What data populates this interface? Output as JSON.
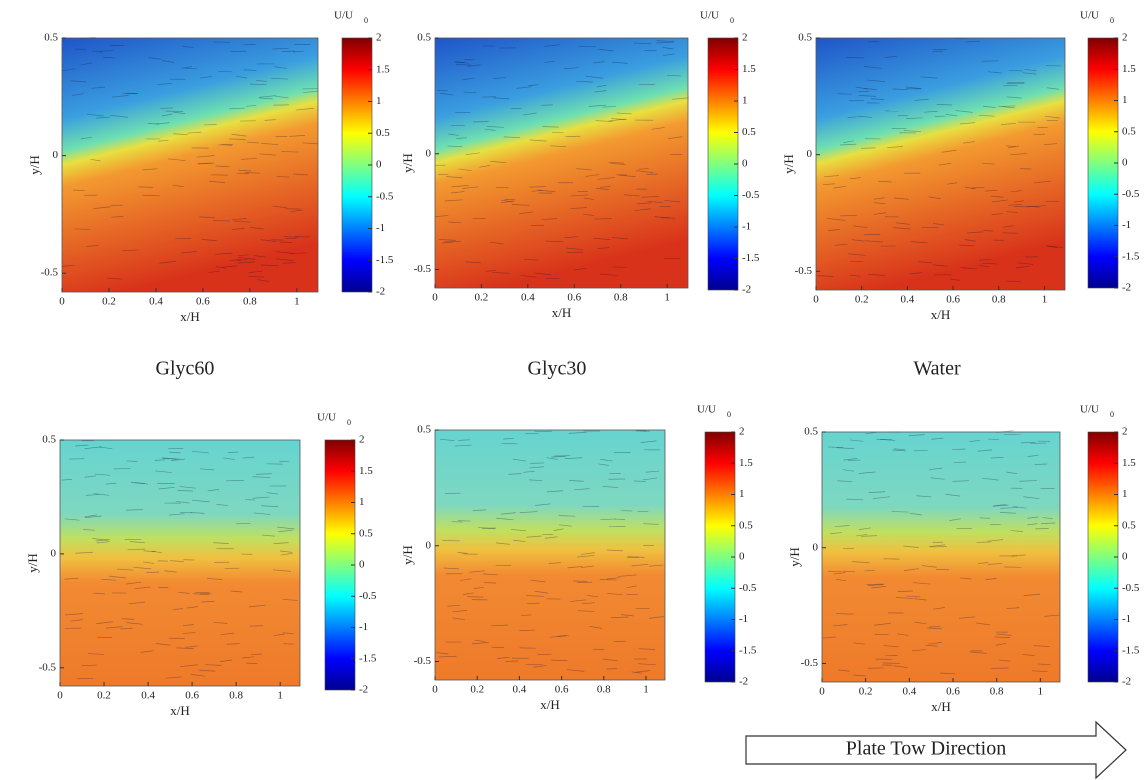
{
  "panels": [
    {
      "xlabel": "x/H",
      "ylabel": "y/H",
      "xlim": [
        0,
        1.09
      ],
      "ylim": [
        -0.58,
        0.5
      ],
      "xticks": [
        0,
        0.2,
        0.4,
        0.6,
        0.8,
        1
      ],
      "yticks": [
        -0.5,
        0,
        0.5
      ],
      "colorbar": {
        "label": "U/U",
        "label_sub": "0",
        "lim": [
          -2,
          2
        ],
        "ticks": [
          2,
          1.5,
          1,
          0.5,
          0,
          -0.5,
          -1,
          -1.5,
          -2
        ]
      }
    },
    {
      "xlabel": "x/H",
      "ylabel": "y/H",
      "xlim": [
        0,
        1.09
      ],
      "ylim": [
        -0.58,
        0.5
      ],
      "xticks": [
        0,
        0.2,
        0.4,
        0.6,
        0.8,
        1
      ],
      "yticks": [
        -0.5,
        0,
        0.5
      ],
      "colorbar": {
        "label": "U/U",
        "label_sub": "0",
        "lim": [
          -2,
          2
        ],
        "ticks": [
          2,
          1.5,
          1,
          0.5,
          0,
          -0.5,
          -1,
          -1.5,
          -2
        ]
      }
    },
    {
      "xlabel": "x/H",
      "ylabel": "y/H",
      "xlim": [
        0,
        1.09
      ],
      "ylim": [
        -0.58,
        0.5
      ],
      "xticks": [
        0,
        0.2,
        0.4,
        0.6,
        0.8,
        1
      ],
      "yticks": [
        -0.5,
        0,
        0.5
      ],
      "colorbar": {
        "label": "U/U",
        "label_sub": "0",
        "lim": [
          -2,
          2
        ],
        "ticks": [
          2,
          1.5,
          1,
          0.5,
          0,
          -0.5,
          -1,
          -1.5,
          -2
        ]
      }
    },
    {
      "xlabel": "x/H",
      "ylabel": "y/H",
      "xlim": [
        0,
        1.09
      ],
      "ylim": [
        -0.58,
        0.5
      ],
      "xticks": [
        0,
        0.2,
        0.4,
        0.6,
        0.8,
        1
      ],
      "yticks": [
        -0.5,
        0,
        0.5
      ],
      "colorbar": {
        "label": "U/U",
        "label_sub": "0",
        "lim": [
          -2,
          2
        ],
        "ticks": [
          2,
          1.5,
          1,
          0.5,
          0,
          -0.5,
          -1,
          -1.5,
          -2
        ]
      }
    },
    {
      "xlabel": "x/H",
      "ylabel": "y/H",
      "xlim": [
        0,
        1.09
      ],
      "ylim": [
        -0.58,
        0.5
      ],
      "xticks": [
        0,
        0.2,
        0.4,
        0.6,
        0.8,
        1
      ],
      "yticks": [
        -0.5,
        0,
        0.5
      ],
      "colorbar": {
        "label": "U/U",
        "label_sub": "0",
        "lim": [
          -2,
          2
        ],
        "ticks": [
          2,
          1.5,
          1,
          0.5,
          0,
          -0.5,
          -1,
          -1.5,
          -2
        ]
      }
    },
    {
      "xlabel": "x/H",
      "ylabel": "y/H",
      "xlim": [
        0,
        1.09
      ],
      "ylim": [
        -0.58,
        0.5
      ],
      "xticks": [
        0,
        0.2,
        0.4,
        0.6,
        0.8,
        1
      ],
      "yticks": [
        -0.5,
        0,
        0.5
      ],
      "colorbar": {
        "label": "U/U",
        "label_sub": "0",
        "lim": [
          -2,
          2
        ],
        "ticks": [
          2,
          1.5,
          1,
          0.5,
          0,
          -0.5,
          -1,
          -1.5,
          -2
        ]
      }
    }
  ],
  "captions": [
    "Glyc60",
    "Glyc30",
    "Water"
  ],
  "arrow_label": "Plate Tow Direction"
}
